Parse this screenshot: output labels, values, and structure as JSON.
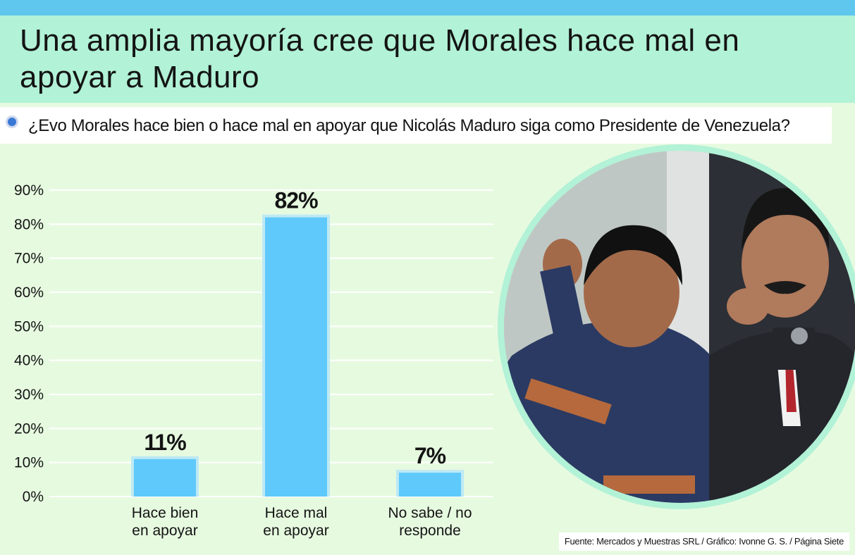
{
  "header": {
    "title": "Una amplia mayoría cree que Morales hace mal en apoyar a Maduro"
  },
  "question": "¿Evo Morales hace bien o hace mal en apoyar que Nicolás Maduro siga como Presidente de Venezuela?",
  "source": "Fuente: Mercados y Muestras SRL / Gráfico: Ivonne G. S. / Página Siete",
  "colors": {
    "bar": "#5fc9fb",
    "bar_border": "#bde9f4",
    "header_bg": "#b2f2d7",
    "page_bg": "#e6fae0",
    "grid": "#ffffff",
    "accent": "#5fc7ee"
  },
  "chart_data": {
    "type": "bar",
    "categories": [
      "Hace bien en apoyar",
      "Hace mal en apoyar",
      "No sabe / no responde"
    ],
    "category_lines": [
      [
        "Hace bien",
        "en apoyar"
      ],
      [
        "Hace mal",
        "en apoyar"
      ],
      [
        "No sabe / no",
        "responde"
      ]
    ],
    "values": [
      11,
      82,
      7
    ],
    "data_labels": [
      "11%",
      "82%",
      "7%"
    ],
    "yticks": [
      "0%",
      "10%",
      "20%",
      "30%",
      "40%",
      "50%",
      "60%",
      "70%",
      "80%",
      "90%"
    ],
    "ylim": [
      0,
      90
    ],
    "grid": true,
    "title": "",
    "xlabel": "",
    "ylabel": ""
  },
  "photo": {
    "icon": "photo-evo-morales-nicolas-maduro"
  }
}
